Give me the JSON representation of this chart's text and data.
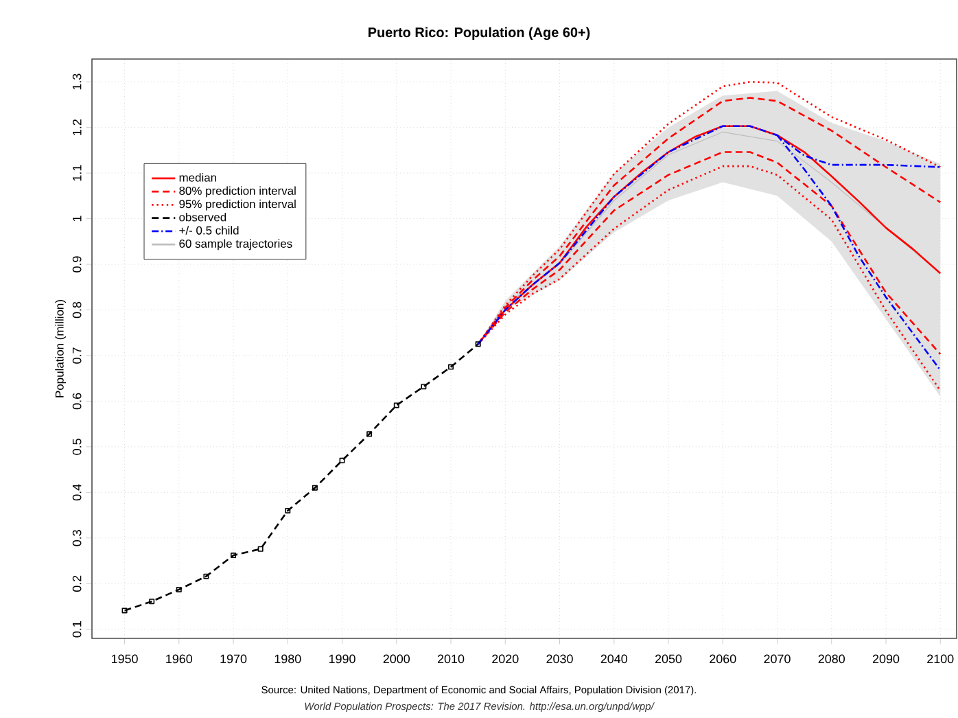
{
  "chart_data": {
    "type": "line",
    "title": "Puerto Rico: Population (Age 60+)",
    "ylabel": "Population (million)",
    "annotations": [
      "Source: United Nations, Department of Economic and Social Affairs, Population Division (2017).",
      "World Population Prospects: The 2017 Revision. http://esa.un.org/unpd/wpp/"
    ],
    "xlim": [
      1944,
      2103
    ],
    "xticks": [
      1950,
      1960,
      1970,
      1980,
      1990,
      2000,
      2010,
      2020,
      2030,
      2040,
      2050,
      2060,
      2070,
      2080,
      2090,
      2100
    ],
    "ylim": [
      0.08,
      1.35
    ],
    "yticks": [
      0.1,
      0.2,
      0.3,
      0.4,
      0.5,
      0.6,
      0.7,
      0.8,
      0.9,
      {
        "value": 1.0,
        "label": "1"
      },
      1.1,
      1.2,
      1.3
    ],
    "grid": true,
    "legend": "top left",
    "series": [
      {
        "name": "median",
        "color": "#ff0000",
        "line_style": "solid",
        "x": [
          2015,
          2020,
          2025,
          2030,
          2035,
          2040,
          2045,
          2050,
          2055,
          2060,
          2065,
          2070,
          2075,
          2080,
          2085,
          2090,
          2095,
          2100
        ],
        "values": [
          0.725,
          0.8,
          0.855,
          0.903,
          0.983,
          1.048,
          1.1,
          1.146,
          1.18,
          1.203,
          1.203,
          1.183,
          1.146,
          1.093,
          1.038,
          0.98,
          0.933,
          0.88
        ]
      },
      {
        "name": "80% prediction interval",
        "color": "#ff0000",
        "line_style": "dashed",
        "x": [
          2015,
          2020,
          2025,
          2030,
          2040,
          2050,
          2060,
          2065,
          2070,
          2080,
          2090,
          2100
        ],
        "values": [
          0.725,
          0.805,
          0.865,
          0.918,
          1.073,
          1.176,
          1.258,
          1.265,
          1.258,
          1.193,
          1.113,
          1.036
        ]
      },
      {
        "color": "#ff0000",
        "line_style": "dashed",
        "x": [
          2015,
          2020,
          2025,
          2030,
          2040,
          2050,
          2060,
          2065,
          2070,
          2080,
          2090,
          2100
        ],
        "values": [
          0.725,
          0.795,
          0.845,
          0.888,
          1.018,
          1.096,
          1.146,
          1.146,
          1.123,
          1.028,
          0.838,
          0.703
        ]
      },
      {
        "name": "95% prediction interval",
        "color": "#ff0000",
        "line_style": "dotted",
        "x": [
          2015,
          2020,
          2025,
          2030,
          2040,
          2050,
          2060,
          2065,
          2070,
          2080,
          2090,
          2100
        ],
        "values": [
          0.725,
          0.81,
          0.875,
          0.933,
          1.098,
          1.208,
          1.29,
          1.3,
          1.298,
          1.223,
          1.173,
          1.113
        ]
      },
      {
        "color": "#ff0000",
        "line_style": "dotted",
        "x": [
          2015,
          2020,
          2025,
          2030,
          2040,
          2050,
          2060,
          2065,
          2070,
          2080,
          2090,
          2100
        ],
        "values": [
          0.725,
          0.79,
          0.835,
          0.868,
          0.978,
          1.063,
          1.115,
          1.115,
          1.096,
          0.998,
          0.798,
          0.623
        ]
      },
      {
        "name": "observed",
        "color": "#000000",
        "line_style": "dashed",
        "marker": "square",
        "x": [
          1950,
          1955,
          1960,
          1965,
          1970,
          1975,
          1980,
          1985,
          1990,
          1995,
          2000,
          2005,
          2010,
          2015
        ],
        "values": [
          0.141,
          0.161,
          0.187,
          0.216,
          0.262,
          0.276,
          0.36,
          0.41,
          0.47,
          0.528,
          0.591,
          0.632,
          0.675,
          0.725
        ]
      },
      {
        "name": "+/- 0.5 child",
        "color": "#0000ff",
        "line_style": "dashdot",
        "x": [
          2015,
          2020,
          2025,
          2030,
          2040,
          2050,
          2060,
          2065,
          2070,
          2075,
          2080,
          2090,
          2100
        ],
        "values": [
          0.725,
          0.8,
          0.855,
          0.903,
          1.048,
          1.146,
          1.203,
          1.203,
          1.183,
          1.138,
          1.118,
          1.118,
          1.113
        ]
      },
      {
        "color": "#0000ff",
        "line_style": "dashdot",
        "x": [
          2070,
          2075,
          2080,
          2085,
          2090,
          2095,
          2100
        ],
        "values": [
          1.183,
          1.108,
          1.028,
          0.918,
          0.828,
          0.748,
          0.668
        ]
      },
      {
        "name": "60 sample trajectories",
        "color": "#bebebe",
        "x": [
          2015,
          2020,
          2030,
          2040,
          2050,
          2060,
          2070,
          2080,
          2090,
          2100
        ],
        "values": [
          0.725,
          0.81,
          0.9,
          1.04,
          1.14,
          1.19,
          1.17,
          1.08,
          0.98,
          0.88
        ],
        "lower": [
          0.725,
          0.8,
          0.865,
          0.97,
          1.04,
          1.08,
          1.05,
          0.95,
          0.78,
          0.61
        ],
        "upper": [
          0.725,
          0.82,
          0.94,
          1.1,
          1.2,
          1.27,
          1.28,
          1.21,
          1.17,
          1.12
        ]
      }
    ]
  }
}
